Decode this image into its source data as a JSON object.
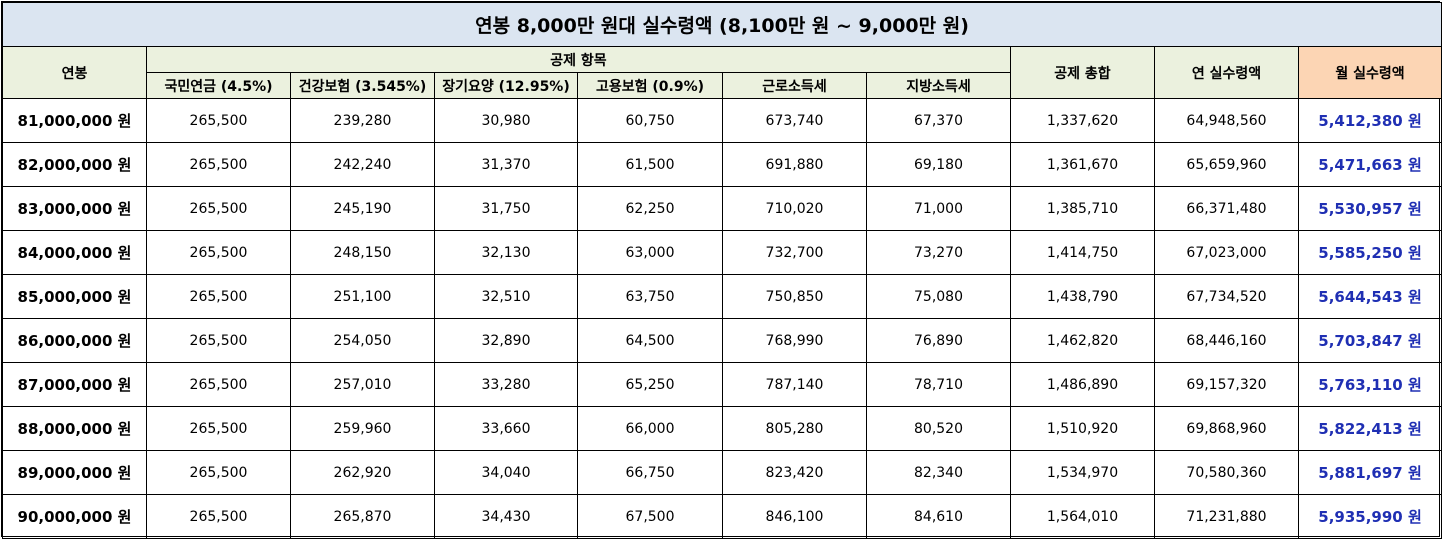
{
  "title": "연봉 8,000만 원대 실수령액 (8,100만 원 ~ 9,000만 원)",
  "headers": {
    "salary": "연봉",
    "deductions_group": "공제 항목",
    "pension": "국민연금 (4.5%)",
    "health": "건강보험 (3.545%)",
    "longterm_care": "장기요양 (12.95%)",
    "employment": "고용보험 (0.9%)",
    "income_tax": "근로소득세",
    "local_tax": "지방소득세",
    "total_deduction": "공제 총합",
    "annual_net": "연 실수령액",
    "monthly_net": "월 실수령액"
  },
  "colors": {
    "title_bg": "#dbe5f1",
    "header_bg": "#ebf1de",
    "monthly_header_bg": "#fcd5b4",
    "monthly_text": "#1f2fb3"
  },
  "rows": [
    {
      "salary": "81,000,000 원",
      "pension": "265,500",
      "health": "239,280",
      "care": "30,980",
      "employment": "60,750",
      "income_tax": "673,740",
      "local_tax": "67,370",
      "total": "1,337,620",
      "annual": "64,948,560",
      "monthly": "5,412,380 원"
    },
    {
      "salary": "82,000,000 원",
      "pension": "265,500",
      "health": "242,240",
      "care": "31,370",
      "employment": "61,500",
      "income_tax": "691,880",
      "local_tax": "69,180",
      "total": "1,361,670",
      "annual": "65,659,960",
      "monthly": "5,471,663 원"
    },
    {
      "salary": "83,000,000 원",
      "pension": "265,500",
      "health": "245,190",
      "care": "31,750",
      "employment": "62,250",
      "income_tax": "710,020",
      "local_tax": "71,000",
      "total": "1,385,710",
      "annual": "66,371,480",
      "monthly": "5,530,957 원"
    },
    {
      "salary": "84,000,000 원",
      "pension": "265,500",
      "health": "248,150",
      "care": "32,130",
      "employment": "63,000",
      "income_tax": "732,700",
      "local_tax": "73,270",
      "total": "1,414,750",
      "annual": "67,023,000",
      "monthly": "5,585,250 원"
    },
    {
      "salary": "85,000,000 원",
      "pension": "265,500",
      "health": "251,100",
      "care": "32,510",
      "employment": "63,750",
      "income_tax": "750,850",
      "local_tax": "75,080",
      "total": "1,438,790",
      "annual": "67,734,520",
      "monthly": "5,644,543 원"
    },
    {
      "salary": "86,000,000 원",
      "pension": "265,500",
      "health": "254,050",
      "care": "32,890",
      "employment": "64,500",
      "income_tax": "768,990",
      "local_tax": "76,890",
      "total": "1,462,820",
      "annual": "68,446,160",
      "monthly": "5,703,847 원"
    },
    {
      "salary": "87,000,000 원",
      "pension": "265,500",
      "health": "257,010",
      "care": "33,280",
      "employment": "65,250",
      "income_tax": "787,140",
      "local_tax": "78,710",
      "total": "1,486,890",
      "annual": "69,157,320",
      "monthly": "5,763,110 원"
    },
    {
      "salary": "88,000,000 원",
      "pension": "265,500",
      "health": "259,960",
      "care": "33,660",
      "employment": "66,000",
      "income_tax": "805,280",
      "local_tax": "80,520",
      "total": "1,510,920",
      "annual": "69,868,960",
      "monthly": "5,822,413 원"
    },
    {
      "salary": "89,000,000 원",
      "pension": "265,500",
      "health": "262,920",
      "care": "34,040",
      "employment": "66,750",
      "income_tax": "823,420",
      "local_tax": "82,340",
      "total": "1,534,970",
      "annual": "70,580,360",
      "monthly": "5,881,697 원"
    },
    {
      "salary": "90,000,000 원",
      "pension": "265,500",
      "health": "265,870",
      "care": "34,430",
      "employment": "67,500",
      "income_tax": "846,100",
      "local_tax": "84,610",
      "total": "1,564,010",
      "annual": "71,231,880",
      "monthly": "5,935,990 원"
    }
  ]
}
